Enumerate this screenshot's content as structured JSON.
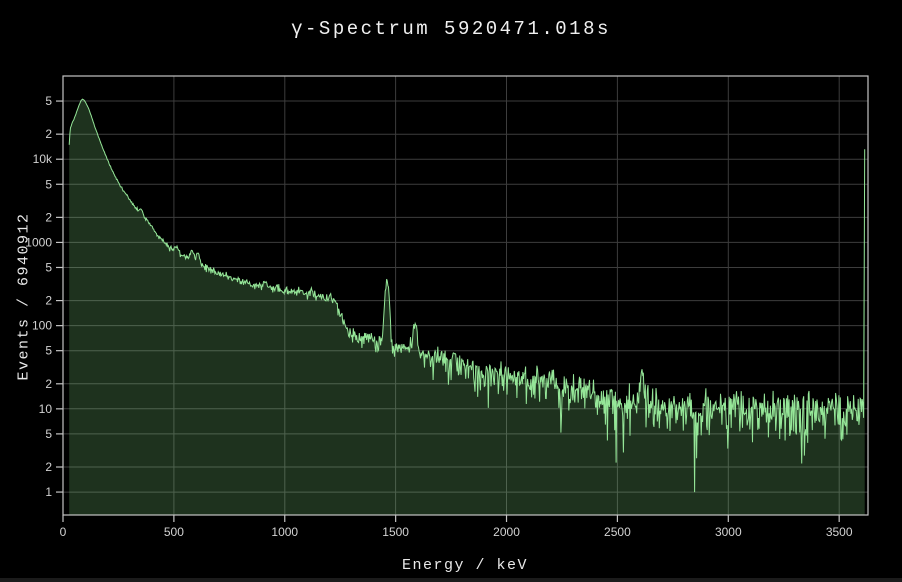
{
  "header": {
    "title": "γ-Spectrum 5920471.018s"
  },
  "chart_data": {
    "type": "area",
    "title": "γ-Spectrum 5920471.018s",
    "xlabel": "Energy / keV",
    "ylabel": "Events / 6940912",
    "live_time_seconds": "5920471.018",
    "total_events": "6940912",
    "grid": true,
    "legend": false,
    "x_axis": {
      "min": 0,
      "max": 3630,
      "unit": "keV",
      "ticks": [
        0,
        500,
        1000,
        1500,
        2000,
        2500,
        3000,
        3500
      ],
      "tick_labels": [
        "0",
        "500",
        "1000",
        "1500",
        "2000",
        "2500",
        "3000",
        "3500"
      ]
    },
    "y_axis": {
      "scale": "log",
      "min": 0.53,
      "max": 100000,
      "ticks": [
        {
          "v": 1,
          "label": "1"
        },
        {
          "v": 2,
          "label": "2"
        },
        {
          "v": 5,
          "label": "5"
        },
        {
          "v": 10,
          "label": "10"
        },
        {
          "v": 20,
          "label": "2"
        },
        {
          "v": 50,
          "label": "5"
        },
        {
          "v": 100,
          "label": "100"
        },
        {
          "v": 200,
          "label": "2"
        },
        {
          "v": 500,
          "label": "5"
        },
        {
          "v": 1000,
          "label": "1000"
        },
        {
          "v": 2000,
          "label": "2"
        },
        {
          "v": 5000,
          "label": "5"
        },
        {
          "v": 10000,
          "label": "10k"
        },
        {
          "v": 20000,
          "label": "2"
        },
        {
          "v": 50000,
          "label": "5"
        }
      ]
    },
    "bin_width_kev": 3,
    "energy_start_kev": 28,
    "energy_end_kev": 3612,
    "envelope": [
      [
        28,
        15000
      ],
      [
        32,
        23000
      ],
      [
        40,
        26500
      ],
      [
        55,
        33000
      ],
      [
        70,
        43000
      ],
      [
        82,
        51000
      ],
      [
        88,
        52500
      ],
      [
        95,
        51500
      ],
      [
        105,
        46500
      ],
      [
        115,
        41000
      ],
      [
        130,
        31500
      ],
      [
        145,
        24000
      ],
      [
        160,
        18500
      ],
      [
        175,
        14500
      ],
      [
        190,
        11500
      ],
      [
        210,
        8600
      ],
      [
        230,
        6600
      ],
      [
        250,
        5300
      ],
      [
        270,
        4300
      ],
      [
        290,
        3600
      ],
      [
        310,
        3000
      ],
      [
        330,
        2550
      ],
      [
        352,
        2250
      ],
      [
        375,
        1900
      ],
      [
        400,
        1560
      ],
      [
        425,
        1230
      ],
      [
        450,
        1050
      ],
      [
        475,
        900
      ],
      [
        500,
        810
      ],
      [
        530,
        730
      ],
      [
        560,
        668
      ],
      [
        583,
        630
      ],
      [
        609,
        580
      ],
      [
        640,
        510
      ],
      [
        680,
        455
      ],
      [
        720,
        410
      ],
      [
        760,
        375
      ],
      [
        800,
        345
      ],
      [
        850,
        318
      ],
      [
        900,
        300
      ],
      [
        950,
        280
      ],
      [
        1000,
        265
      ],
      [
        1060,
        248
      ],
      [
        1120,
        235
      ],
      [
        1180,
        218
      ],
      [
        1230,
        200
      ],
      [
        1252,
        128
      ],
      [
        1280,
        92
      ],
      [
        1320,
        75
      ],
      [
        1380,
        66
      ],
      [
        1440,
        60
      ],
      [
        1500,
        55
      ],
      [
        1560,
        50
      ],
      [
        1620,
        45
      ],
      [
        1700,
        38
      ],
      [
        1800,
        32
      ],
      [
        1900,
        27
      ],
      [
        2000,
        24
      ],
      [
        2100,
        21
      ],
      [
        2200,
        18.5
      ],
      [
        2300,
        16
      ],
      [
        2400,
        14
      ],
      [
        2480,
        12.5
      ],
      [
        2560,
        11.5
      ],
      [
        2614,
        11
      ],
      [
        2700,
        10.5
      ],
      [
        2800,
        10
      ],
      [
        2900,
        9.8
      ],
      [
        3100,
        9.6
      ],
      [
        3300,
        9.6
      ],
      [
        3500,
        9.7
      ],
      [
        3618,
        9.8
      ]
    ],
    "peaks": [
      {
        "center": 352,
        "sigma": 6,
        "amp": 260
      },
      {
        "center": 511,
        "sigma": 7,
        "amp": 90
      },
      {
        "center": 583,
        "sigma": 7,
        "amp": 150
      },
      {
        "center": 609,
        "sigma": 7,
        "amp": 190
      },
      {
        "center": 911,
        "sigma": 8,
        "amp": 48
      },
      {
        "center": 969,
        "sigma": 8,
        "amp": 28
      },
      {
        "center": 1120,
        "sigma": 9,
        "amp": 30
      },
      {
        "center": 1461,
        "sigma": 9,
        "amp": 290
      },
      {
        "center": 1588,
        "sigma": 8,
        "amp": 65
      },
      {
        "center": 1764,
        "sigma": 9,
        "amp": 9
      },
      {
        "center": 2204,
        "sigma": 10,
        "amp": 4
      },
      {
        "center": 2614,
        "sigma": 10,
        "amp": 14
      }
    ],
    "overflow_bin": {
      "energy": 3615,
      "counts": 13200
    },
    "forced_dips": [
      {
        "energy": 2848,
        "counts": 1
      }
    ],
    "noise": {
      "model": "poisson-gaussian",
      "seed": 1234,
      "clamp_min": 1.0
    },
    "colors": {
      "background": "#000000",
      "line": "#95e698",
      "fill": "#90ee90",
      "fill_opacity": 0.21,
      "grid": "#3d3d3d",
      "frame": "#c4c4c4",
      "tick_mark": "#c4c4c4",
      "tick_text": "#d2d2d2",
      "label_text": "#e8e8e8",
      "title_text": "#f0f0f0"
    }
  }
}
